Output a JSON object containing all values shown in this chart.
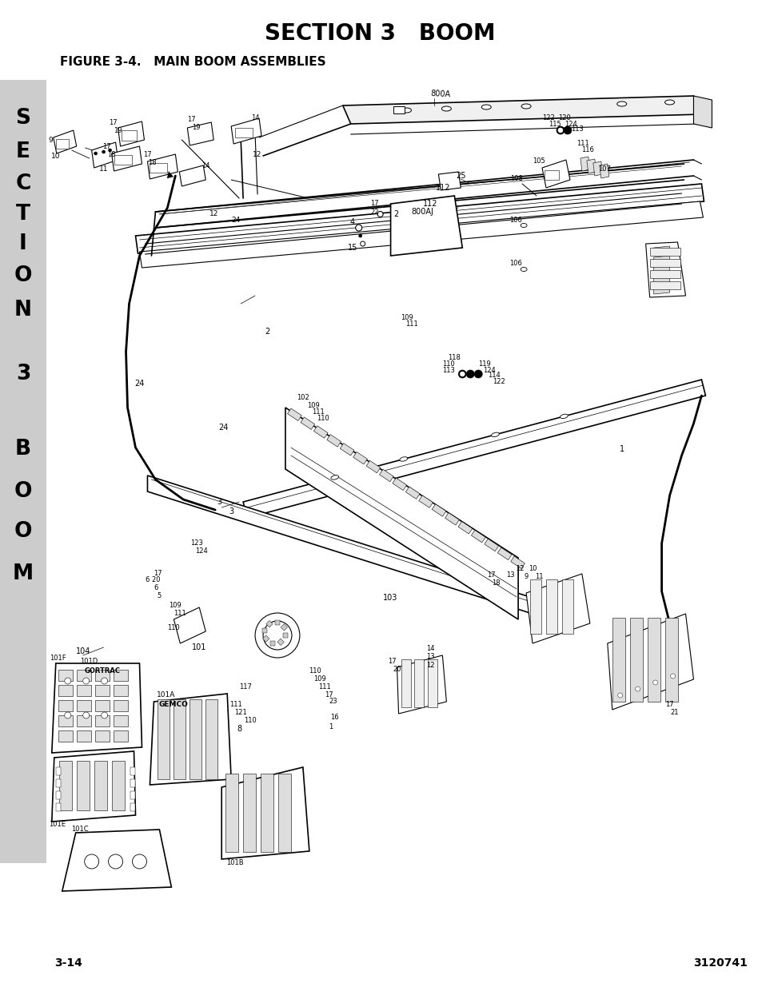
{
  "title": "SECTION 3   BOOM",
  "figure_label": "FIGURE 3-4.   MAIN BOOM ASSEMBLIES",
  "page_left": "3-14",
  "page_right": "3120741",
  "sidebar_bg": "#cccccc",
  "background": "#ffffff",
  "title_fontsize": 20,
  "figure_label_fontsize": 11,
  "page_fontsize": 10,
  "sidebar_fontsize": 19,
  "sidebar_chars": [
    "S",
    "E",
    "C",
    "T",
    "I",
    "O",
    "N",
    "",
    "3",
    "",
    "B",
    "O",
    "O",
    "M"
  ],
  "sidebar_y": [
    148,
    190,
    230,
    268,
    305,
    345,
    388,
    425,
    468,
    508,
    562,
    615,
    665,
    718
  ]
}
